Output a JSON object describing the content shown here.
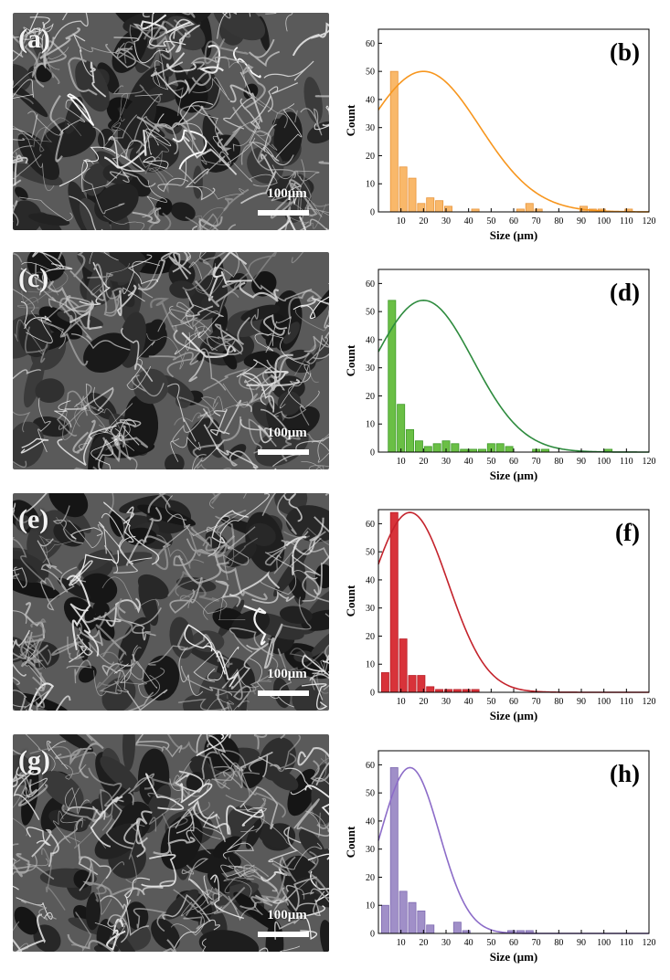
{
  "panels": [
    {
      "sem_label": "(a)",
      "scale_text": "100μm"
    },
    {
      "sem_label": "(c)",
      "scale_text": "100μm"
    },
    {
      "sem_label": "(e)",
      "scale_text": "100μm"
    },
    {
      "sem_label": "(g)",
      "scale_text": "100μm"
    }
  ],
  "colors": {
    "b": {
      "fill": "#f9b86a",
      "edge": "#e8953c",
      "curve": "#f7961e"
    },
    "d": {
      "fill": "#6abf45",
      "edge": "#3f9a2a",
      "curve": "#2e8b3e"
    },
    "f": {
      "fill": "#d8333a",
      "edge": "#b81f27",
      "curve": "#c4232c"
    },
    "h": {
      "fill": "#a08fc8",
      "edge": "#7e6bb0",
      "curve": "#8c6cc8"
    }
  },
  "chart_data": [
    {
      "type": "bar",
      "panel_label": "(b)",
      "xlabel": "Size (μm)",
      "ylabel": "Count",
      "xlim": [
        0,
        120
      ],
      "ylim": [
        0,
        65
      ],
      "xticks": [
        10,
        20,
        30,
        40,
        50,
        60,
        70,
        80,
        90,
        100,
        110,
        120
      ],
      "yticks": [
        0,
        10,
        20,
        30,
        40,
        50,
        60
      ],
      "bin_width": 3.3,
      "bins": [
        7,
        11,
        15,
        19,
        23,
        27,
        31,
        35,
        39,
        43,
        47,
        51,
        55,
        59,
        63,
        67,
        71,
        75,
        79,
        83,
        87,
        91,
        95,
        99,
        103,
        107,
        111
      ],
      "counts": [
        50,
        16,
        12,
        3,
        5,
        4,
        2,
        0,
        0,
        1,
        0,
        0,
        0,
        0,
        1,
        3,
        1,
        0,
        0,
        0,
        0,
        2,
        1,
        1,
        0,
        0,
        1
      ],
      "fit": {
        "peak_x": 20,
        "peak_y": 50,
        "sigma": 25
      }
    },
    {
      "type": "bar",
      "panel_label": "(d)",
      "xlabel": "Size (μm)",
      "ylabel": "Count",
      "xlim": [
        0,
        120
      ],
      "ylim": [
        0,
        65
      ],
      "xticks": [
        10,
        20,
        30,
        40,
        50,
        60,
        70,
        80,
        90,
        100,
        110,
        120
      ],
      "yticks": [
        0,
        10,
        20,
        30,
        40,
        50,
        60
      ],
      "bin_width": 3.3,
      "bins": [
        6,
        10,
        14,
        18,
        22,
        26,
        30,
        34,
        38,
        42,
        46,
        50,
        54,
        58,
        62,
        66,
        70,
        74,
        78,
        82,
        86,
        90,
        94,
        98,
        102
      ],
      "counts": [
        54,
        17,
        8,
        4,
        2,
        3,
        4,
        3,
        1,
        1,
        1,
        3,
        3,
        2,
        0,
        0,
        1,
        1,
        0,
        0,
        0,
        0,
        0,
        0,
        1
      ],
      "fit": {
        "peak_x": 20,
        "peak_y": 54,
        "sigma": 22
      }
    },
    {
      "type": "bar",
      "panel_label": "(f)",
      "xlabel": "Size (μm)",
      "ylabel": "Count",
      "xlim": [
        0,
        120
      ],
      "ylim": [
        0,
        65
      ],
      "xticks": [
        10,
        20,
        30,
        40,
        50,
        60,
        70,
        80,
        90,
        100,
        110,
        120
      ],
      "yticks": [
        0,
        10,
        20,
        30,
        40,
        50,
        60
      ],
      "bin_width": 3.3,
      "bins": [
        3,
        7,
        11,
        15,
        19,
        23,
        27,
        31,
        35,
        39,
        43,
        47
      ],
      "counts": [
        7,
        64,
        19,
        6,
        6,
        2,
        1,
        1,
        1,
        1,
        1,
        0
      ],
      "fit": {
        "peak_x": 14,
        "peak_y": 64,
        "sigma": 17
      }
    },
    {
      "type": "bar",
      "panel_label": "(h)",
      "xlabel": "Size (μm)",
      "ylabel": "Count",
      "xlim": [
        0,
        120
      ],
      "ylim": [
        0,
        65
      ],
      "xticks": [
        10,
        20,
        30,
        40,
        50,
        60,
        70,
        80,
        90,
        100,
        110,
        120
      ],
      "yticks": [
        0,
        10,
        20,
        30,
        40,
        50,
        60
      ],
      "bin_width": 3.3,
      "bins": [
        3,
        7,
        11,
        15,
        19,
        23,
        27,
        31,
        35,
        39,
        43,
        47,
        51,
        55,
        59,
        63,
        67,
        71
      ],
      "counts": [
        10,
        59,
        15,
        11,
        8,
        3,
        0,
        0,
        4,
        1,
        0,
        0,
        0,
        0,
        1,
        1,
        1,
        0
      ],
      "fit": {
        "peak_x": 14,
        "peak_y": 59,
        "sigma": 13
      }
    }
  ]
}
